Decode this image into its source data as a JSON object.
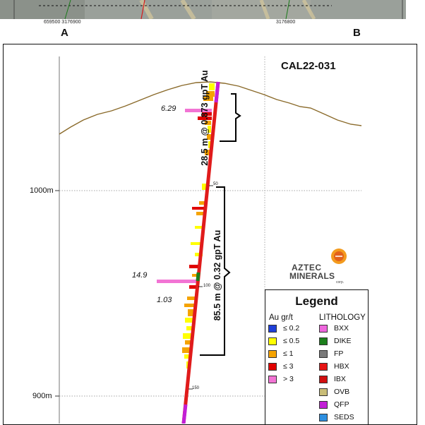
{
  "map_strip": {
    "coords_left": "659500 3176900",
    "coords_right": "3176800"
  },
  "section_labels": {
    "start": "A",
    "end": "B"
  },
  "hole_id": "CAL22-031",
  "elevation_labels": [
    "1000m",
    "900m"
  ],
  "depth_ticks": [
    "50",
    "100",
    "150"
  ],
  "peak_values": [
    "6.29",
    "14.9",
    "1.03"
  ],
  "intercepts": [
    {
      "text": "28.5 m @ 0.873 gpT Au"
    },
    {
      "text": "85.5 m @ 0.32 gpT Au"
    }
  ],
  "logo": {
    "line1": "AZTEC",
    "line2": "MINERALS",
    "line3": "corp."
  },
  "legend": {
    "title": "Legend",
    "au_header": "Au gr/t",
    "litho_header": "LITHOLOGY",
    "au_items": [
      {
        "label": "≤ 0.2",
        "color": "#1f3fd8"
      },
      {
        "label": "≤ 0.5",
        "color": "#ffff00"
      },
      {
        "label": "≤ 1",
        "color": "#f5a300"
      },
      {
        "label": "≤ 3",
        "color": "#e00000"
      },
      {
        "label": "> 3",
        "color": "#f274d4"
      }
    ],
    "litho_items": [
      {
        "label": "BXX",
        "color": "#ee66dd"
      },
      {
        "label": "DIKE",
        "color": "#1c7f1c"
      },
      {
        "label": "FP",
        "color": "#7a7a7a"
      },
      {
        "label": "HBX",
        "color": "#e61414"
      },
      {
        "label": "IBX",
        "color": "#d10f0f"
      },
      {
        "label": "OVB",
        "color": "#c9bd78"
      },
      {
        "label": "QFP",
        "color": "#c21fd6"
      },
      {
        "label": "SEDS",
        "color": "#2d8fe0"
      }
    ]
  },
  "colors": {
    "topography": "#8a6a2a",
    "drillhole": "#e01b1b",
    "grid": "#777777"
  }
}
